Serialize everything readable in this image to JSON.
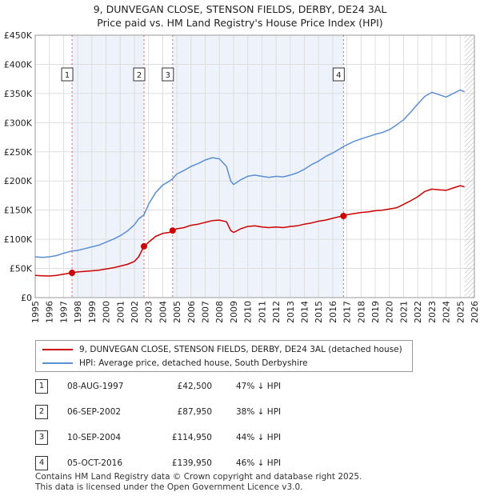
{
  "header": {
    "title": "9, DUNVEGAN CLOSE, STENSON FIELDS, DERBY, DE24 3AL",
    "subtitle": "Price paid vs. HM Land Registry's House Price Index (HPI)"
  },
  "chart_data": {
    "type": "line",
    "ylim": [
      0,
      450000
    ],
    "xlim": [
      1995,
      2026
    ],
    "y_ticks": [
      0,
      50000,
      100000,
      150000,
      200000,
      250000,
      300000,
      350000,
      400000,
      450000
    ],
    "y_tick_labels": [
      "£0",
      "£50K",
      "£100K",
      "£150K",
      "£200K",
      "£250K",
      "£300K",
      "£350K",
      "£400K",
      "£450K"
    ],
    "x_ticks": [
      "1995",
      "1996",
      "1997",
      "1998",
      "1999",
      "2000",
      "2001",
      "2002",
      "2003",
      "2004",
      "2005",
      "2006",
      "2007",
      "2008",
      "2009",
      "2010",
      "2011",
      "2012",
      "2013",
      "2014",
      "2015",
      "2016",
      "2017",
      "2018",
      "2019",
      "2020",
      "2021",
      "2022",
      "2023",
      "2024",
      "2025",
      "2026"
    ],
    "hatch_from": 2025.3,
    "colors": {
      "property": "#cc0000",
      "hpi": "#5b8fd0",
      "shade": "#eef2fb",
      "vline": "#e06060"
    },
    "series": [
      {
        "name": "9, DUNVEGAN CLOSE, STENSON FIELDS, DERBY, DE24 3AL (detached house)",
        "color": "#cc0000",
        "x": [
          1995.0,
          1995.5,
          1996.0,
          1996.5,
          1997.0,
          1997.6,
          1998.0,
          1998.5,
          1999.0,
          1999.5,
          2000.0,
          2000.5,
          2001.0,
          2001.5,
          2002.0,
          2002.3,
          2002.68,
          2003.0,
          2003.5,
          2004.0,
          2004.5,
          2004.7,
          2005.0,
          2005.5,
          2006.0,
          2006.5,
          2007.0,
          2007.5,
          2008.0,
          2008.5,
          2008.8,
          2009.0,
          2009.2,
          2009.5,
          2010.0,
          2010.5,
          2011.0,
          2011.5,
          2012.0,
          2012.5,
          2013.0,
          2013.5,
          2014.0,
          2014.5,
          2015.0,
          2015.5,
          2016.0,
          2016.5,
          2016.76,
          2017.0,
          2017.5,
          2018.0,
          2018.5,
          2019.0,
          2019.5,
          2020.0,
          2020.5,
          2021.0,
          2021.5,
          2022.0,
          2022.5,
          2023.0,
          2023.5,
          2024.0,
          2024.5,
          2025.0,
          2025.3
        ],
        "y": [
          38000,
          37500,
          37000,
          38000,
          40000,
          42500,
          44000,
          45000,
          46000,
          47000,
          49000,
          51000,
          54000,
          57000,
          62000,
          70000,
          87950,
          95000,
          105000,
          110000,
          112000,
          114950,
          118000,
          120000,
          124000,
          126000,
          129000,
          132000,
          133000,
          130000,
          115000,
          112000,
          114000,
          118000,
          122000,
          123000,
          121000,
          120000,
          121000,
          120000,
          122000,
          123000,
          126000,
          128000,
          131000,
          133000,
          136000,
          139000,
          139950,
          142000,
          144000,
          146000,
          147000,
          149000,
          150000,
          152000,
          154000,
          160000,
          166000,
          173000,
          182000,
          186000,
          185000,
          184000,
          188000,
          192000,
          190000
        ]
      },
      {
        "name": "HPI: Average price, detached house, South Derbyshire",
        "color": "#5b8fd0",
        "x": [
          1995.0,
          1995.5,
          1996.0,
          1996.5,
          1997.0,
          1997.6,
          1998.0,
          1998.5,
          1999.0,
          1999.5,
          2000.0,
          2000.5,
          2001.0,
          2001.5,
          2002.0,
          2002.3,
          2002.68,
          2003.0,
          2003.5,
          2004.0,
          2004.5,
          2004.7,
          2005.0,
          2005.5,
          2006.0,
          2006.5,
          2007.0,
          2007.5,
          2008.0,
          2008.5,
          2008.8,
          2009.0,
          2009.2,
          2009.5,
          2010.0,
          2010.5,
          2011.0,
          2011.5,
          2012.0,
          2012.5,
          2013.0,
          2013.5,
          2014.0,
          2014.5,
          2015.0,
          2015.5,
          2016.0,
          2016.5,
          2016.76,
          2017.0,
          2017.5,
          2018.0,
          2018.5,
          2019.0,
          2019.5,
          2020.0,
          2020.5,
          2021.0,
          2021.5,
          2022.0,
          2022.5,
          2023.0,
          2023.5,
          2024.0,
          2024.5,
          2025.0,
          2025.3
        ],
        "y": [
          70000,
          69000,
          70000,
          72000,
          76000,
          80000,
          81000,
          84000,
          87000,
          90000,
          95000,
          100000,
          106000,
          114000,
          125000,
          135000,
          142000,
          160000,
          180000,
          193000,
          200000,
          204000,
          212000,
          218000,
          225000,
          230000,
          236000,
          240000,
          238000,
          225000,
          200000,
          194000,
          197000,
          202000,
          208000,
          210000,
          208000,
          206000,
          208000,
          207000,
          210000,
          214000,
          220000,
          228000,
          234000,
          242000,
          248000,
          255000,
          259000,
          262000,
          268000,
          272000,
          276000,
          280000,
          283000,
          288000,
          296000,
          305000,
          318000,
          332000,
          345000,
          352000,
          348000,
          344000,
          350000,
          356000,
          353000
        ]
      }
    ],
    "sales": [
      {
        "label": "1",
        "x": 1997.6,
        "y": 42500
      },
      {
        "label": "2",
        "x": 2002.68,
        "y": 87950
      },
      {
        "label": "3",
        "x": 2004.7,
        "y": 114950
      },
      {
        "label": "4",
        "x": 2016.76,
        "y": 139950
      }
    ]
  },
  "legend": {
    "items": [
      {
        "label": "9, DUNVEGAN CLOSE, STENSON FIELDS, DERBY, DE24 3AL (detached house)",
        "color": "#cc0000"
      },
      {
        "label": "HPI: Average price, detached house, South Derbyshire",
        "color": "#5b8fd0"
      }
    ]
  },
  "sales_table": [
    {
      "num": "1",
      "date": "08-AUG-1997",
      "price": "£42,500",
      "hpi": "47% ↓ HPI"
    },
    {
      "num": "2",
      "date": "06-SEP-2002",
      "price": "£87,950",
      "hpi": "38% ↓ HPI"
    },
    {
      "num": "3",
      "date": "10-SEP-2004",
      "price": "£114,950",
      "hpi": "44% ↓ HPI"
    },
    {
      "num": "4",
      "date": "05-OCT-2016",
      "price": "£139,950",
      "hpi": "46% ↓ HPI"
    }
  ],
  "footer": {
    "line1": "Contains HM Land Registry data © Crown copyright and database right 2025.",
    "line2": "This data is licensed under the Open Government Licence v3.0."
  }
}
